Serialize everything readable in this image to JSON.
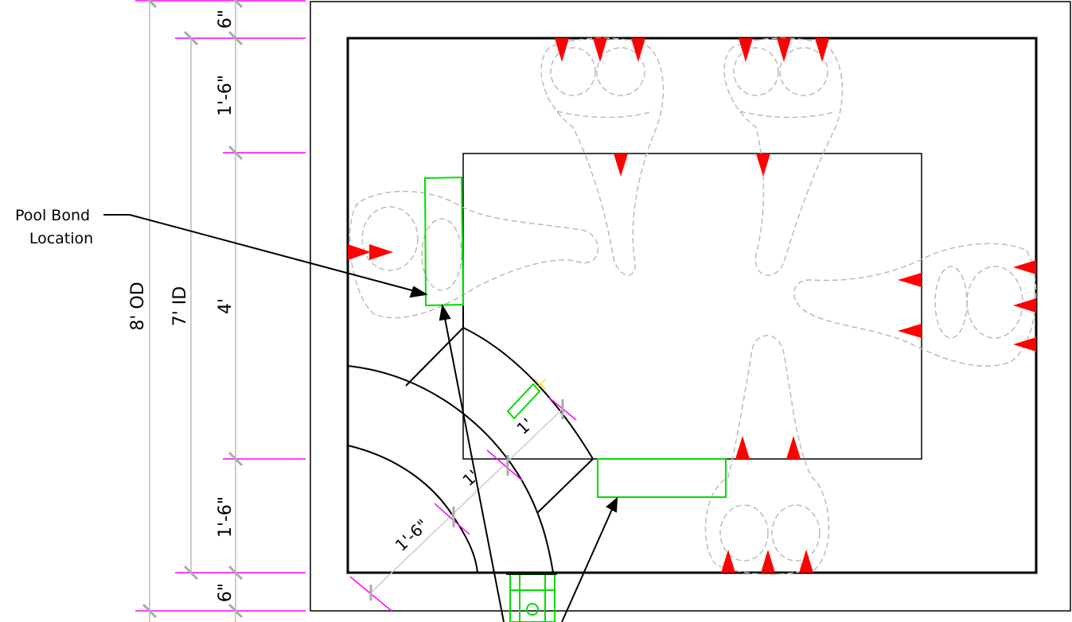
{
  "dimensions": {
    "overall_od": "8' OD",
    "inner_id": "7' ID",
    "top_margin": "6\"",
    "top_section": "1'-6\"",
    "middle_section": "4'",
    "bottom_section": "1'-6\"",
    "bottom_margin": "6\""
  },
  "diagonal_dims": {
    "outer": "1'-6\"",
    "middle": "1'",
    "inner": "1'"
  },
  "callout": {
    "line1": "Pool Bond",
    "line2": "Location"
  },
  "colors": {
    "dimension_line": "#ff00ff",
    "extension_tick": "#aaaaaa",
    "bond_box": "#00dd00",
    "nozzle": "#ff0000",
    "foot_outline": "#bbbbbb",
    "structure": "#000000"
  }
}
